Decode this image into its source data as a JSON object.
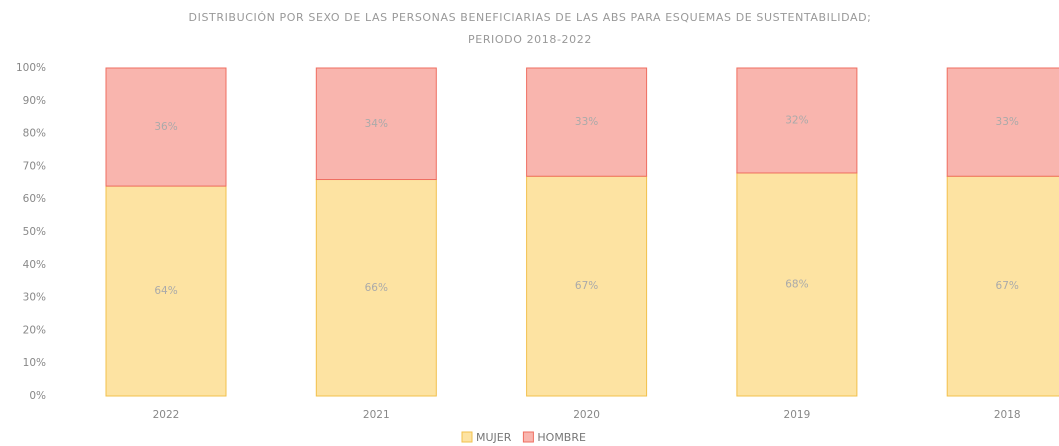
{
  "chart_data": {
    "type": "stacked_bar",
    "title": [
      "DISTRIBUCIÓN POR SEXO DE LAS PERSONAS BENEFICIARIAS DE LAS ABS PARA ESQUEMAS DE SUSTENTABILIDAD;",
      "PERIODO 2018-2022"
    ],
    "categories": [
      "2022",
      "2021",
      "2020",
      "2019",
      "2018"
    ],
    "series": [
      {
        "name": "MUJER",
        "color": "#fde3a2",
        "values": [
          64,
          66,
          67,
          68,
          67
        ],
        "value_labels": [
          "64%",
          "66%",
          "67%",
          "68%",
          "67%"
        ]
      },
      {
        "name": "HOMBRE",
        "color": "#f9b5ae",
        "values": [
          36,
          34,
          33,
          32,
          33
        ],
        "value_labels": [
          "36%",
          "34%",
          "33%",
          "32%",
          "33%"
        ]
      }
    ],
    "ylim": [
      0,
      100
    ],
    "yticks": [
      {
        "value": 0,
        "label": "0%"
      },
      {
        "value": 10,
        "label": "10%"
      },
      {
        "value": 20,
        "label": "20%"
      },
      {
        "value": 30,
        "label": "30%"
      },
      {
        "value": 40,
        "label": "40%"
      },
      {
        "value": 50,
        "label": "50%"
      },
      {
        "value": 60,
        "label": "60%"
      },
      {
        "value": 70,
        "label": "70%"
      },
      {
        "value": 80,
        "label": "80%"
      },
      {
        "value": 90,
        "label": "90%"
      },
      {
        "value": 100,
        "label": "100%"
      }
    ],
    "legend": "bottom"
  }
}
